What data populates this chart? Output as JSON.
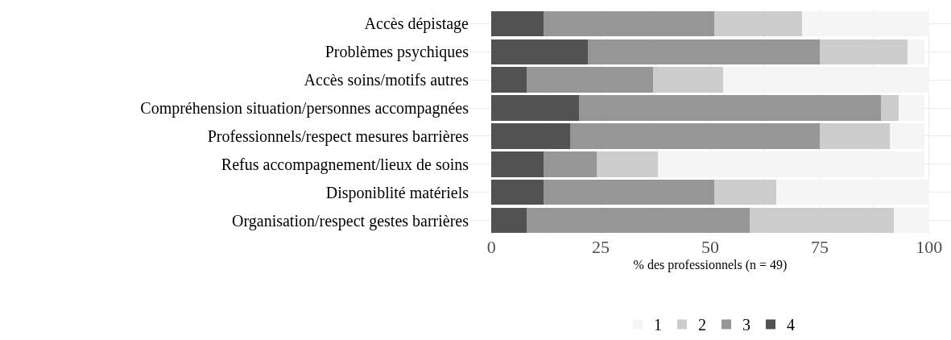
{
  "chart_data": {
    "type": "bar",
    "orientation": "horizontal",
    "stacked": true,
    "categories": [
      "Accès dépistage",
      "Problèmes psychiques",
      "Accès soins/motifs autres",
      "Compréhension situation/personnes accompagnées",
      "Professionnels/respect mesures barrières",
      "Refus accompagnement/lieux de soins",
      "Disponiblité matériels",
      "Organisation/respect gestes barrières"
    ],
    "series": [
      {
        "name": "4",
        "color": "#525252",
        "values": [
          12,
          22,
          8,
          20,
          18,
          12,
          12,
          8
        ]
      },
      {
        "name": "3",
        "color": "#969696",
        "values": [
          39,
          53,
          29,
          69,
          57,
          12,
          39,
          51
        ]
      },
      {
        "name": "2",
        "color": "#cccccc",
        "values": [
          20,
          20,
          16,
          4,
          16,
          14,
          14,
          33
        ]
      },
      {
        "name": "1",
        "color": "#f5f5f5",
        "values": [
          29,
          4,
          47,
          6,
          8,
          61,
          35,
          8
        ]
      }
    ],
    "xlabel": "% des professionnels (n = 49)",
    "xlim": [
      -5,
      105
    ],
    "xticks": [
      0,
      {
        "value": 12.5,
        "label": null
      },
      25,
      {
        "value": 37.5,
        "label": null
      },
      50,
      {
        "value": 62.5,
        "label": null
      },
      75,
      {
        "value": 87.5,
        "label": null
      },
      100
    ],
    "grid": true,
    "legend": "bottom"
  }
}
